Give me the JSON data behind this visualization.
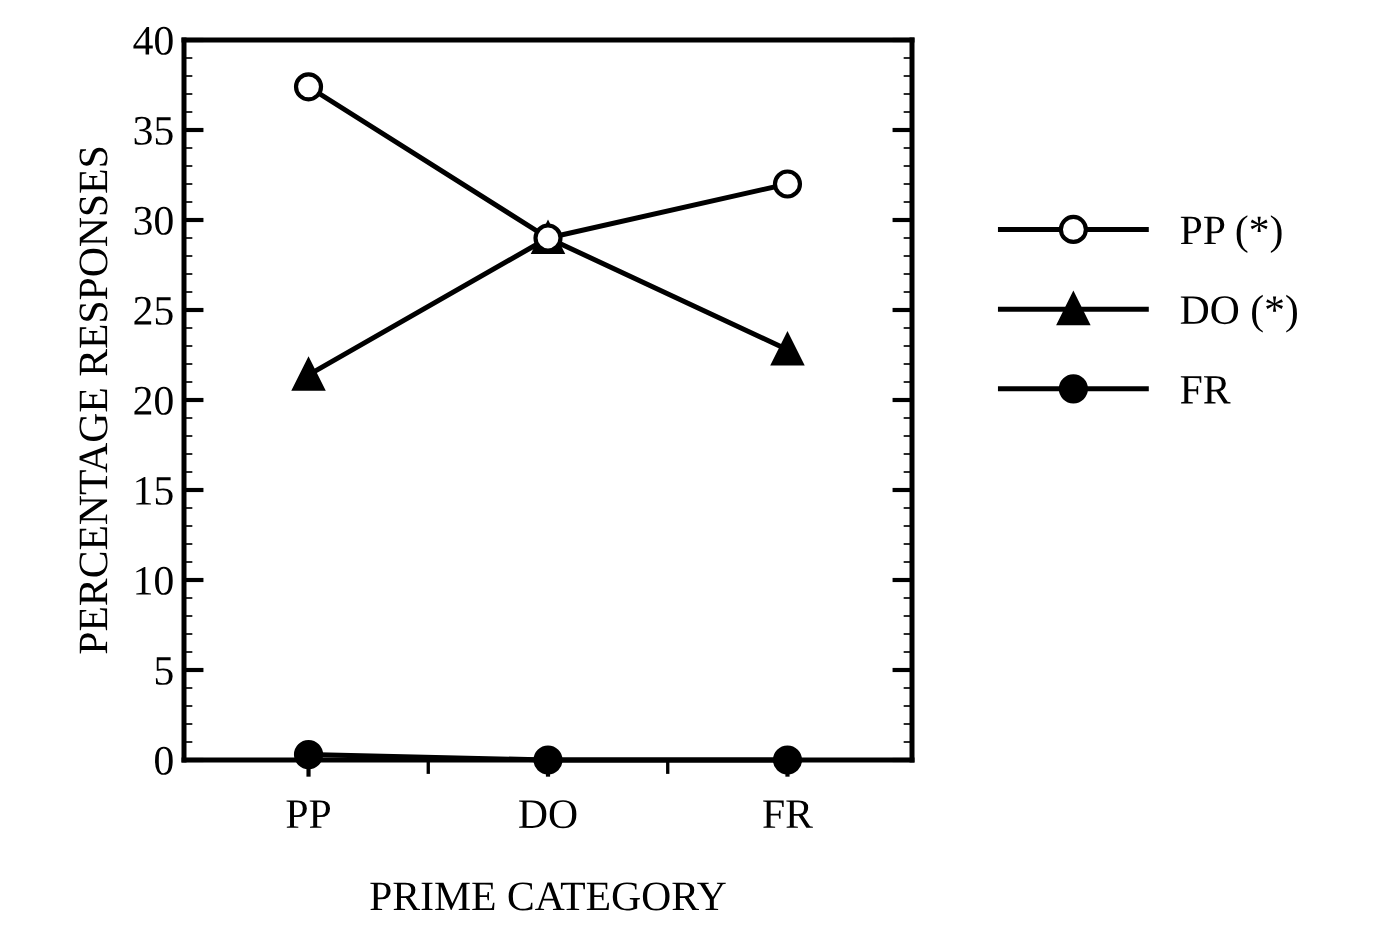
{
  "chart_data": {
    "type": "line",
    "xlabel": "PRIME CATEGORY",
    "ylabel": "PERCENTAGE RESPONSES",
    "categories": [
      "PP",
      "DO",
      "FR"
    ],
    "series": [
      {
        "name": "PP (*)",
        "color": "#000000",
        "marker": "circle",
        "values": [
          37.4,
          29,
          32
        ]
      },
      {
        "name": "DO (*)",
        "color": "#000000",
        "marker": "triangle",
        "values": [
          21.4,
          29,
          22.8
        ]
      },
      {
        "name": "FR",
        "color": "#000000",
        "marker": "circle",
        "values": [
          0.3,
          0,
          0
        ]
      }
    ],
    "ylim": [
      0,
      40
    ],
    "yticks": [
      0,
      5,
      10,
      15,
      20,
      25,
      30,
      35,
      40
    ],
    "grid": false,
    "legend": "right",
    "line_style": "solid"
  }
}
